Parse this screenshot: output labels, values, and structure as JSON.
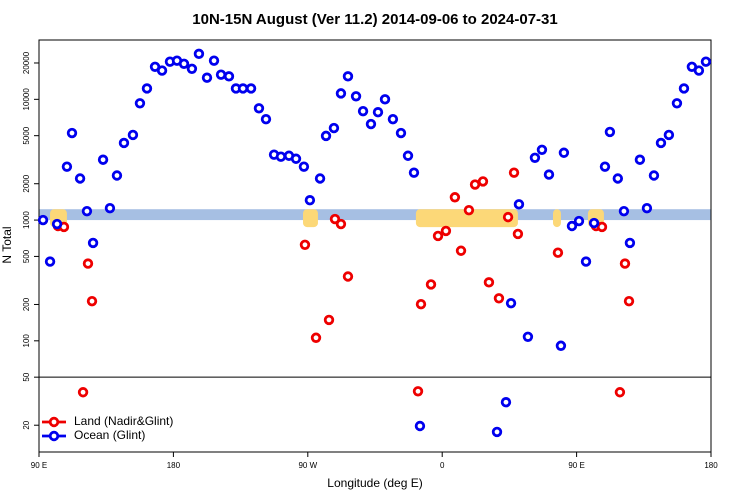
{
  "chart_data": {
    "type": "scatter",
    "title": "10N-15N August (Ver 11.2)   2014-09-06 to 2024-07-31",
    "xlabel": "Longitude (deg E)",
    "ylabel": "N Total",
    "xlim": [
      90,
      540
    ],
    "xticks": [
      {
        "value": 90,
        "label": "90 E"
      },
      180,
      {
        "value": 270,
        "label": "90 W"
      },
      {
        "value": 360,
        "label": "0"
      },
      {
        "value": 450,
        "label": "90 E"
      },
      {
        "value": 540,
        "label": "180"
      }
    ],
    "ylim": [
      12,
      31000
    ],
    "ylog": true,
    "yticks": [
      20,
      50,
      100,
      200,
      500,
      1000,
      2000,
      5000,
      10000,
      20000
    ],
    "panel_divider": 50,
    "band": {
      "ylim": [
        1000,
        1230
      ],
      "color": "#a6bfe3"
    },
    "highlights": {
      "color": "#fcd878",
      "ranges": [
        [
          97.4,
          108.7
        ],
        [
          266.8,
          276.8
        ],
        [
          342.4,
          410.7
        ],
        [
          434.2,
          439.5
        ],
        [
          457.6,
          468.3
        ]
      ]
    },
    "legend": "lower left",
    "series": [
      {
        "name": "Land (Nadir&Glint)",
        "color": "#ee0000",
        "x": [
          102.7,
          106.7,
          122.8,
          125.5,
          119.5,
          268.1,
          275.5,
          284.2,
          288.2,
          292.2,
          296.9,
          343.8,
          345.8,
          352.5,
          357.2,
          362.5,
          368.5,
          372.6,
          377.9,
          382,
          387.3,
          391.3,
          398,
          404.1,
          408.1,
          410.7,
          437.5,
          463,
          467,
          482.4,
          485.1,
          479
        ],
        "values": [
          893,
          877,
          436,
          213,
          37.5,
          624,
          106,
          149,
          1020,
          927,
          341,
          38.2,
          201,
          293,
          739,
          813,
          1545,
          557,
          1208,
          1970,
          2090,
          305,
          225,
          1058,
          2470,
          768,
          537,
          893,
          877,
          436,
          213,
          37.5
        ]
      },
      {
        "name": "Ocean (Glint)",
        "color": "#0000ee",
        "x": [
          92.7,
          97.4,
          102.1,
          108.7,
          112.1,
          117.5,
          122.1,
          126.2,
          132.9,
          137.5,
          142.2,
          146.9,
          152.9,
          157.6,
          162.3,
          167.7,
          172.4,
          177.7,
          182.4,
          187.1,
          192.4,
          197.1,
          202.5,
          207.2,
          211.9,
          217.2,
          221.9,
          226.6,
          232,
          237.3,
          242,
          247.4,
          252,
          257.4,
          262.1,
          267.4,
          271.4,
          278.2,
          282.2,
          287.5,
          292.2,
          296.9,
          302.3,
          307,
          312.3,
          317,
          321.7,
          327,
          332.4,
          337.1,
          341.1,
          406.1,
          411.4,
          417.4,
          422.1,
          426.8,
          431.5,
          439.5,
          441.5,
          446.9,
          451.6,
          456.3,
          461.7,
          469,
          472.3,
          477.6,
          481.7,
          485.7,
          492.4,
          497.1,
          501.8,
          506.5,
          511.8,
          517.2,
          521.9,
          527.2,
          531.9,
          536.6,
          345.1,
          402.7,
          396.7
        ],
        "values": [
          1000,
          453,
          927,
          2770,
          5260,
          2210,
          1185,
          647,
          3160,
          1255,
          2340,
          4350,
          5070,
          9270,
          12300,
          18600,
          17300,
          20500,
          20900,
          19700,
          17900,
          23800,
          15100,
          20900,
          16000,
          15500,
          12300,
          12300,
          12300,
          8430,
          6850,
          3480,
          3350,
          3410,
          3220,
          2770,
          1460,
          2210,
          4980,
          5780,
          11200,
          15500,
          10600,
          7980,
          6240,
          7820,
          10000,
          6850,
          5260,
          3410,
          2470,
          205,
          1350,
          108,
          3280,
          3820,
          2380,
          91,
          3610,
          893,
          981,
          453,
          945,
          2770,
          5370,
          2210,
          1185,
          647,
          3160,
          1255,
          2340,
          4350,
          5070,
          9270,
          12300,
          18600,
          17300,
          20500,
          19.7,
          31,
          17.6
        ]
      }
    ]
  }
}
